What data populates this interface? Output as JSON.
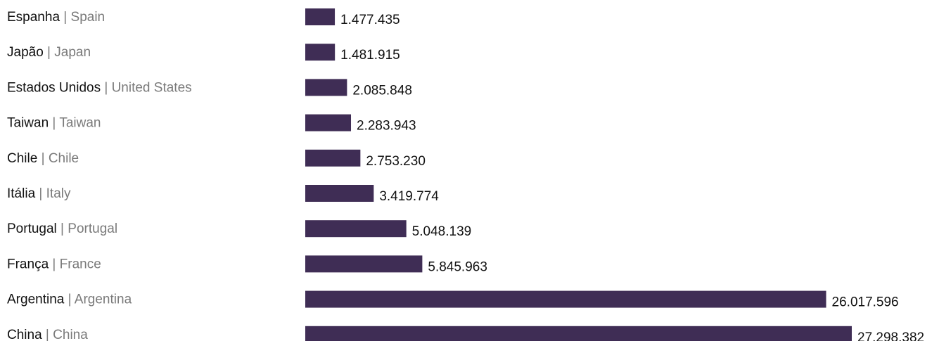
{
  "chart_data": {
    "type": "bar",
    "orientation": "horizontal",
    "bar_color": "#3f2d55",
    "categories": [
      {
        "primary": "Espanha",
        "secondary": "Spain"
      },
      {
        "primary": "Japão",
        "secondary": "Japan"
      },
      {
        "primary": "Estados Unidos",
        "secondary": "United States"
      },
      {
        "primary": "Taiwan",
        "secondary": "Taiwan"
      },
      {
        "primary": "Chile",
        "secondary": "Chile"
      },
      {
        "primary": "Itália",
        "secondary": "Italy"
      },
      {
        "primary": "Portugal",
        "secondary": "Portugal"
      },
      {
        "primary": "França",
        "secondary": "France"
      },
      {
        "primary": "Argentina",
        "secondary": "Argentina"
      },
      {
        "primary": "China",
        "secondary": "China"
      }
    ],
    "values": [
      1477435,
      1481915,
      2085848,
      2283943,
      2753230,
      3419774,
      5048139,
      5845963,
      26017596,
      27298382
    ],
    "value_labels": [
      "1.477.435",
      "1.481.915",
      "2.085.848",
      "2.283.943",
      "2.753.230",
      "3.419.774",
      "5.048.139",
      "5.845.963",
      "26.017.596",
      "27.298.382"
    ],
    "separator": "|",
    "grid": false,
    "legend": "none"
  }
}
